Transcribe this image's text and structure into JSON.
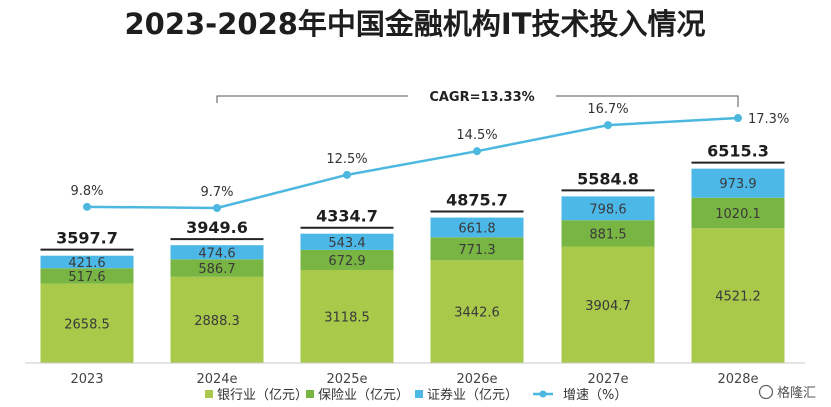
{
  "chart_data": {
    "type": "bar",
    "title": "2023-2028年中国金融机构IT技术投入情况",
    "categories": [
      "2023",
      "2024e",
      "2025e",
      "2026e",
      "2027e",
      "2028e"
    ],
    "series": [
      {
        "name": "银行业（亿元）",
        "values": [
          2658.5,
          2888.3,
          3118.5,
          3442.6,
          3904.7,
          4521.2
        ],
        "color": "#a8c94a"
      },
      {
        "name": "保险业（亿元）",
        "values": [
          517.6,
          586.7,
          672.9,
          771.3,
          881.5,
          1020.1
        ],
        "color": "#79b543"
      },
      {
        "name": "证券业（亿元）",
        "values": [
          421.6,
          474.6,
          543.4,
          661.8,
          798.6,
          973.9
        ],
        "color": "#4cb8e8"
      }
    ],
    "totals": [
      "3597.7",
      "3949.6",
      "4334.7",
      "4875.7",
      "5584.8",
      "6515.3"
    ],
    "growth": {
      "name": "增速（%）",
      "values": [
        9.8,
        9.7,
        12.5,
        14.5,
        16.7,
        17.3
      ],
      "labels": [
        "9.8%",
        "9.7%",
        "12.5%",
        "14.5%",
        "16.7%",
        "17.3%"
      ],
      "color": "#4cb8e0"
    },
    "annotation": "CAGR=13.33%",
    "stacked": true,
    "legend_position": "bottom",
    "grid": false
  },
  "watermark": "格隆汇",
  "colors": {
    "axis": "#c8c8c8",
    "text": "#1e1e1e",
    "bracket": "#555555"
  }
}
